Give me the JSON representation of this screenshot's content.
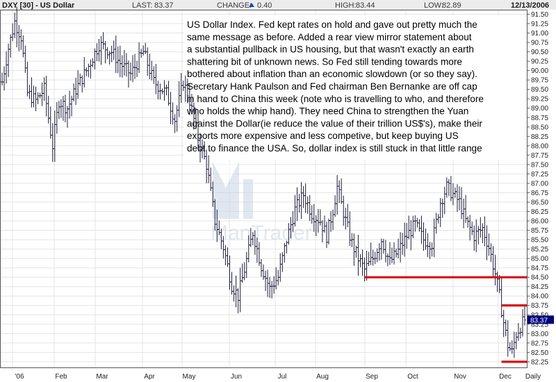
{
  "header": {
    "title": "DXY [30] - US Dollar",
    "last_label": "LAST:",
    "last_value": "83.37",
    "change_label": "CHANGE:",
    "change_value": "0.40",
    "high_label": "HIGH:",
    "high_value": "83.44",
    "low_label": "LOW:",
    "low_value": "82.89",
    "date": "12/13/2006"
  },
  "watermark": "ManTrader",
  "annotation": [
    "US Dollar Index. Fed kept rates on hold and gave out pretty much the",
    "same message as before. Added a rear view mirror statement about",
    "a substantial pullback in US housing, but that wasn't exactly an earth",
    "shattering bit of unknown news. So Fed still tending towards more",
    "bothered  about inflation than an economic slowdown (or so they say).",
    "Secretary Hank Paulson and Fed chairman Ben Bernanke are off cap",
    "in hand to China this week (note who is travelling to who, and therefore",
    "who holds the whip hand). They need China to strengthen the Yuan",
    "against the Dollar(ie reduce the value of their trillion US$'s), make their",
    "exports more expensive and less competive, but keep buying US",
    "debt to finance the USA. So, dollar index is still stuck in that little range"
  ],
  "colors": {
    "bars": "#1c1c3c",
    "grid": "#e4e4e4",
    "support_lines": "#d81010",
    "price_tag": "#000080",
    "header_bg": "#ececec",
    "change_up": "#0044cc"
  },
  "chart_data": {
    "type": "ohlc",
    "symbol": "DXY",
    "period": "Daily",
    "current_price": 83.37,
    "y_ticks": [
      "91.50",
      "91.25",
      "91.00",
      "90.75",
      "90.50",
      "90.25",
      "90.00",
      "89.75",
      "89.50",
      "89.25",
      "89.00",
      "88.75",
      "88.50",
      "88.25",
      "88.00",
      "87.75",
      "87.50",
      "87.25",
      "87.00",
      "86.75",
      "86.50",
      "86.25",
      "86.00",
      "85.75",
      "85.50",
      "85.25",
      "85.00",
      "84.75",
      "84.50",
      "84.25",
      "84.00",
      "83.75",
      "83.50",
      "83.25",
      "83.00",
      "82.75",
      "82.50",
      "82.25"
    ],
    "ylim": [
      82.1,
      91.62
    ],
    "x_labels": [
      "'06",
      "Feb",
      "Mar",
      "Apr",
      "May",
      "Jun",
      "Jul",
      "Aug",
      "Sep",
      "Oct",
      "Nov",
      "Dec",
      "Daily"
    ],
    "close_path": [
      [
        0,
        89.7
      ],
      [
        3,
        90.6
      ],
      [
        6,
        91.3
      ],
      [
        9,
        90.9
      ],
      [
        12,
        89.4
      ],
      [
        16,
        89.2
      ],
      [
        20,
        89.5
      ],
      [
        24,
        88.0
      ],
      [
        27,
        89.2
      ],
      [
        31,
        89.0
      ],
      [
        35,
        89.5
      ],
      [
        40,
        90.0
      ],
      [
        46,
        90.7
      ],
      [
        52,
        90.5
      ],
      [
        56,
        90.2
      ],
      [
        61,
        89.9
      ],
      [
        67,
        90.5
      ],
      [
        72,
        89.7
      ],
      [
        78,
        89.4
      ],
      [
        82,
        88.7
      ],
      [
        86,
        89.7
      ],
      [
        89,
        89.2
      ],
      [
        93,
        88.2
      ],
      [
        97,
        87.5
      ],
      [
        101,
        86.0
      ],
      [
        105,
        85.3
      ],
      [
        109,
        84.3
      ],
      [
        112,
        84.0
      ],
      [
        115,
        84.7
      ],
      [
        119,
        85.7
      ],
      [
        123,
        84.8
      ],
      [
        127,
        84.2
      ],
      [
        131,
        84.5
      ],
      [
        135,
        85.5
      ],
      [
        139,
        86.3
      ],
      [
        143,
        86.7
      ],
      [
        147,
        86.2
      ],
      [
        151,
        86.0
      ],
      [
        154,
        85.6
      ],
      [
        157,
        86.3
      ],
      [
        159,
        86.9
      ],
      [
        163,
        86.0
      ],
      [
        166,
        85.4
      ],
      [
        169,
        85.0
      ],
      [
        172,
        84.7
      ],
      [
        176,
        85.0
      ],
      [
        180,
        85.5
      ],
      [
        184,
        84.9
      ],
      [
        188,
        85.2
      ],
      [
        192,
        85.6
      ],
      [
        196,
        85.9
      ],
      [
        200,
        85.5
      ],
      [
        204,
        85.4
      ],
      [
        208,
        86.5
      ],
      [
        211,
        86.9
      ],
      [
        214,
        86.7
      ],
      [
        217,
        86.5
      ],
      [
        220,
        86.0
      ],
      [
        224,
        85.6
      ],
      [
        228,
        85.8
      ],
      [
        231,
        85.3
      ],
      [
        234,
        84.6
      ],
      [
        236,
        84.0
      ],
      [
        238,
        83.3
      ],
      [
        240,
        82.7
      ],
      [
        242,
        82.5
      ],
      [
        244,
        83.0
      ],
      [
        246,
        83.2
      ],
      [
        248,
        83.37
      ]
    ],
    "bar_count": 249,
    "horizontal_levels": [
      {
        "price": 84.5,
        "from_index": 172,
        "to_index": 249
      },
      {
        "price": 83.75,
        "from_index": 237,
        "to_index": 249
      },
      {
        "price": 82.25,
        "from_index": 237,
        "to_index": 249
      }
    ]
  }
}
